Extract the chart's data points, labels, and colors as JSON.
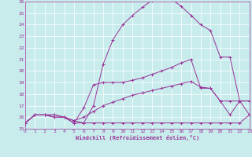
{
  "xlabel": "Windchill (Refroidissement éolien,°C)",
  "xlim": [
    0,
    23
  ],
  "ylim": [
    15,
    26
  ],
  "xticks": [
    0,
    1,
    2,
    3,
    4,
    5,
    6,
    7,
    8,
    9,
    10,
    11,
    12,
    13,
    14,
    15,
    16,
    17,
    18,
    19,
    20,
    21,
    22,
    23
  ],
  "yticks": [
    15,
    16,
    17,
    18,
    19,
    20,
    21,
    22,
    23,
    24,
    25,
    26
  ],
  "bg_color": "#c8ecec",
  "line_color": "#993399",
  "grid_color": "#ffffff",
  "line1_x": [
    0,
    1,
    2,
    3,
    4,
    5,
    6,
    7,
    8,
    9,
    10,
    11,
    12,
    13,
    14,
    15,
    16,
    17,
    18,
    19,
    20,
    21,
    22,
    23
  ],
  "line1_y": [
    15.5,
    16.2,
    16.2,
    16.2,
    16.0,
    15.7,
    15.5,
    15.5,
    15.5,
    15.5,
    15.5,
    15.5,
    15.5,
    15.5,
    15.5,
    15.5,
    15.5,
    15.5,
    15.5,
    15.5,
    15.5,
    15.5,
    15.5,
    16.2
  ],
  "line2_x": [
    0,
    1,
    2,
    3,
    4,
    5,
    6,
    7,
    8,
    9,
    10,
    11,
    12,
    13,
    14,
    15,
    16,
    17,
    18,
    19,
    20,
    21,
    22,
    23
  ],
  "line2_y": [
    15.5,
    16.2,
    16.2,
    16.2,
    16.0,
    15.7,
    16.0,
    16.5,
    17.0,
    17.3,
    17.6,
    17.9,
    18.1,
    18.3,
    18.5,
    18.7,
    18.9,
    19.1,
    18.6,
    18.5,
    17.4,
    17.4,
    17.4,
    16.2
  ],
  "line3_x": [
    0,
    1,
    2,
    3,
    4,
    5,
    6,
    7,
    8,
    9,
    10,
    11,
    12,
    13,
    14,
    15,
    16,
    17,
    18,
    19,
    20,
    21,
    22,
    23
  ],
  "line3_y": [
    15.5,
    16.2,
    16.2,
    16.0,
    16.0,
    15.5,
    16.8,
    18.8,
    19.0,
    19.0,
    19.0,
    19.2,
    19.4,
    19.7,
    20.0,
    20.3,
    20.7,
    21.0,
    18.5,
    18.5,
    17.4,
    16.2,
    17.4,
    17.4
  ],
  "line4_x": [
    0,
    1,
    2,
    3,
    4,
    5,
    6,
    7,
    8,
    9,
    10,
    11,
    12,
    13,
    14,
    15,
    16,
    17,
    18,
    19,
    20,
    21,
    22,
    23
  ],
  "line4_y": [
    15.5,
    16.2,
    16.2,
    16.0,
    16.0,
    15.5,
    15.5,
    17.0,
    20.6,
    22.7,
    24.0,
    24.8,
    25.5,
    26.1,
    26.2,
    26.2,
    25.6,
    24.8,
    24.0,
    23.5,
    21.2,
    21.2,
    17.4,
    17.4
  ]
}
